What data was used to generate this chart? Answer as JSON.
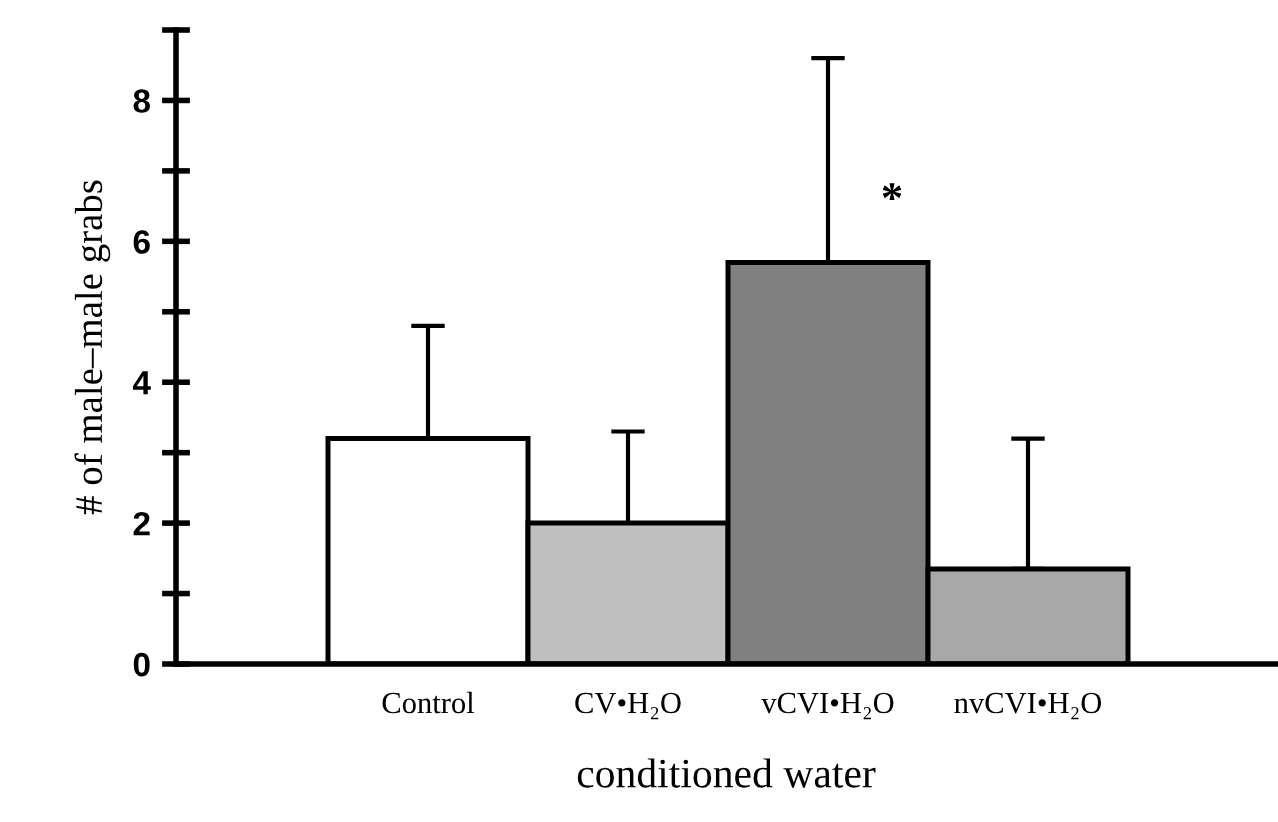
{
  "chart_data": {
    "type": "bar",
    "xlabel": "conditioned water",
    "ylabel": "# of male–male grabs",
    "categories": [
      "Control",
      "CV•H₂O",
      "vCVI•H₂O",
      "nvCVI•H₂O"
    ],
    "values": [
      3.2,
      2.0,
      5.7,
      1.35
    ],
    "errors": [
      [
        3.2,
        4.8
      ],
      [
        2.0,
        3.3
      ],
      [
        5.7,
        8.6
      ],
      [
        1.35,
        3.2
      ]
    ],
    "colors": [
      "#ffffff",
      "#c0c0c0",
      "#808080",
      "#a8a8a8"
    ],
    "ylim": [
      0,
      9
    ],
    "yticks": [
      0,
      {
        "value": 1,
        "label": null
      },
      2,
      {
        "value": 3,
        "label": null
      },
      4,
      {
        "value": 5,
        "label": null
      },
      6,
      {
        "value": 7,
        "label": null
      },
      8,
      {
        "value": 9,
        "label": null
      }
    ],
    "annotations": [
      "*"
    ],
    "grid": false,
    "legend": false
  }
}
